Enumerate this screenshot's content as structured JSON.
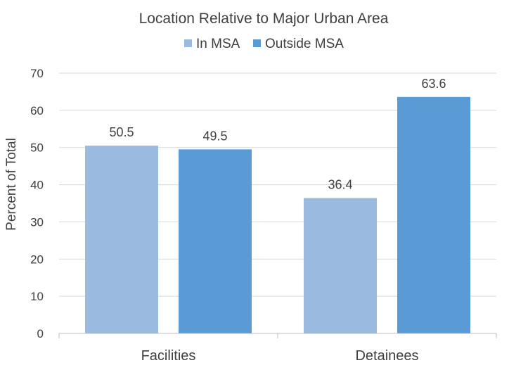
{
  "chart_data": {
    "type": "bar",
    "title": "Location Relative to Major Urban Area",
    "xlabel": "",
    "ylabel": "Percent of Total",
    "categories": [
      "Facilities",
      "Detainees"
    ],
    "series": [
      {
        "name": "In MSA",
        "values": [
          50.5,
          36.4
        ],
        "color": "#9BBAE0"
      },
      {
        "name": "Outside MSA",
        "values": [
          49.5,
          63.6
        ],
        "color": "#5B9BD5"
      }
    ],
    "ylim": [
      0,
      70
    ],
    "yticks": [
      0,
      10,
      20,
      30,
      40,
      50,
      60,
      70
    ],
    "data_labels": true,
    "grid": true,
    "legend_position": "top"
  }
}
